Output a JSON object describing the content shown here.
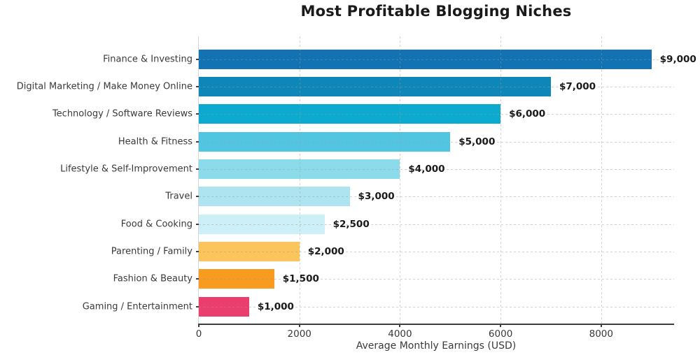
{
  "title": "Most Profitable Blogging Niches",
  "chart_data": {
    "type": "bar",
    "orientation": "horizontal",
    "title": "Most Profitable Blogging Niches",
    "xlabel": "Average Monthly Earnings (USD)",
    "ylabel": "",
    "categories": [
      "Finance & Investing",
      "Digital Marketing / Make Money Online",
      "Technology / Software Reviews",
      "Health & Fitness",
      "Lifestyle & Self-Improvement",
      "Travel",
      "Food & Cooking",
      "Parenting / Family",
      "Fashion & Beauty",
      "Gaming / Entertainment"
    ],
    "values": [
      9000,
      7000,
      6000,
      5000,
      4000,
      3000,
      2500,
      2000,
      1500,
      1000
    ],
    "value_labels": [
      "$9,000",
      "$7,000",
      "$6,000",
      "$5,000",
      "$4,000",
      "$3,000",
      "$2,500",
      "$2,000",
      "$1,500",
      "$1,000"
    ],
    "bar_colors": [
      "#1272b4",
      "#0e87b8",
      "#0caacf",
      "#52c5e2",
      "#8bdbeb",
      "#aee3f0",
      "#cdeff7",
      "#fcc45c",
      "#f89c20",
      "#ea3e6f"
    ],
    "xlim": [
      0,
      9450
    ],
    "xticks": [
      0,
      2000,
      4000,
      6000,
      8000
    ],
    "xtick_labels": [
      "0",
      "2000",
      "4000",
      "6000",
      "8000"
    ],
    "grid": true,
    "grid_style": "dashed",
    "legend": false
  },
  "colors": {
    "background": "#ffffff",
    "axis": "#3f3f3f",
    "grid": "#9a9a9a",
    "title_text": "#1a1a1a",
    "label_text": "#3a3a3a"
  }
}
